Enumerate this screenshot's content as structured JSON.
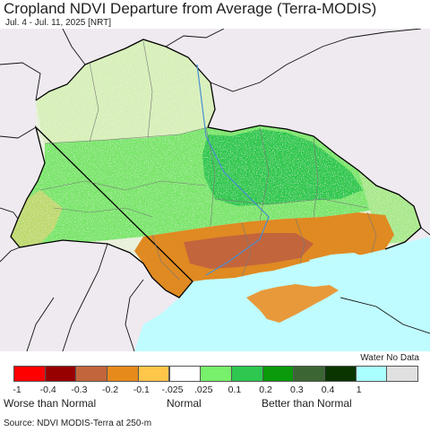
{
  "title": "Cropland NDVI Departure from Average (Terra-MODIS)",
  "subtitle": "Jul. 4 - Jul. 11, 2025 [NRT]",
  "legend": {
    "water_no_data_label": "Water No Data",
    "classes": [
      {
        "color": "#ff0000"
      },
      {
        "color": "#990000"
      },
      {
        "color": "#c2653c"
      },
      {
        "color": "#e68a1c"
      },
      {
        "color": "#ffc64a"
      },
      {
        "color": "#ffffff"
      },
      {
        "color": "#77f06b"
      },
      {
        "color": "#2ec750"
      },
      {
        "color": "#0a9a0a"
      },
      {
        "color": "#3b6634"
      },
      {
        "color": "#0a3500"
      },
      {
        "color": "#aaffff"
      },
      {
        "color": "#e0e0e0"
      }
    ],
    "ticks": [
      "-1",
      "-0.4",
      "-0.3",
      "-0.2",
      "-0.1",
      "-.025",
      ".025",
      "0.1",
      "0.2",
      "0.3",
      "0.4",
      "1"
    ],
    "categories": {
      "worse": "Worse than Normal",
      "normal": "Normal",
      "better": "Better than Normal"
    }
  },
  "source": "Source: NDVI MODIS-Terra at 250-m",
  "map_colors": {
    "background": "#efeaf0",
    "water": "#bffcff",
    "green": "#2fc84e",
    "light_green": "#7ae56a",
    "dark_green": "#129c18",
    "orange": "#e08a22",
    "brown": "#b86a35",
    "yellow": "#f5d070"
  }
}
